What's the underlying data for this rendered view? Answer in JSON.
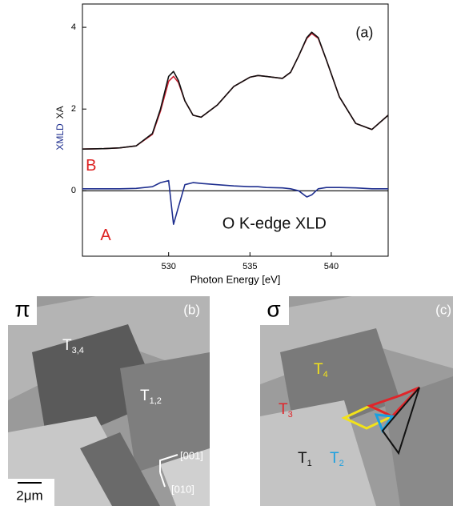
{
  "chart_data": {
    "type": "line",
    "x": [
      524.7,
      526,
      527,
      528,
      529,
      529.5,
      530,
      530.3,
      530.6,
      531,
      531.5,
      532,
      533,
      534,
      535,
      535.5,
      536,
      537,
      537.5,
      538,
      538.5,
      538.8,
      539.2,
      539.7,
      540.5,
      541.5,
      542.5,
      543.5
    ],
    "series": [
      {
        "color": "#cc2233",
        "values": [
          1.02,
          1.03,
          1.05,
          1.1,
          1.38,
          1.95,
          2.68,
          2.8,
          2.65,
          2.2,
          1.85,
          1.8,
          2.1,
          2.55,
          2.78,
          2.82,
          2.8,
          2.75,
          2.9,
          3.3,
          3.73,
          3.85,
          3.73,
          3.2,
          2.3,
          1.65,
          1.5,
          1.85
        ]
      },
      {
        "color": "#111111",
        "values": [
          1.02,
          1.03,
          1.05,
          1.1,
          1.4,
          2.0,
          2.8,
          2.92,
          2.7,
          2.2,
          1.85,
          1.8,
          2.1,
          2.55,
          2.78,
          2.82,
          2.8,
          2.75,
          2.9,
          3.3,
          3.75,
          3.88,
          3.75,
          3.2,
          2.3,
          1.65,
          1.5,
          1.85
        ]
      },
      {
        "color": "#1f2f8f",
        "values": [
          0.05,
          0.05,
          0.05,
          0.06,
          0.1,
          0.2,
          0.25,
          -0.82,
          -0.4,
          0.15,
          0.2,
          0.18,
          0.15,
          0.12,
          0.1,
          0.1,
          0.08,
          0.07,
          0.05,
          0.0,
          -0.15,
          -0.1,
          0.05,
          0.08,
          0.08,
          0.07,
          0.05,
          0.05
        ]
      }
    ],
    "xlim": [
      524.7,
      543.5
    ],
    "ylim": [
      -1.6,
      4.57
    ],
    "xticks": [
      530,
      535,
      540
    ],
    "yticks": [
      0,
      2,
      4
    ],
    "x_label": "Photon Energy [eV]",
    "y_label_parts": [
      {
        "text": "XMLD",
        "color": "#1f2f8f"
      },
      {
        "text": "XA",
        "color": "#111111"
      }
    ],
    "zero_line": true,
    "annotations": [
      {
        "text": "(a)",
        "x": 541.5,
        "y": 3.85,
        "color": "#111111",
        "size": 18
      },
      {
        "text": "B",
        "x": 524.9,
        "y": 0.6,
        "color": "#dd2222",
        "size": 20
      },
      {
        "text": "A",
        "x": 525.8,
        "y": -1.1,
        "color": "#dd2222",
        "size": 20
      },
      {
        "text": "O K-edge XLD",
        "x": 533.3,
        "y": -0.82,
        "color": "#111111",
        "size": 20
      }
    ]
  },
  "panels": [
    {
      "polarization": "π",
      "label": "(b)",
      "domains": [
        {
          "text": "T",
          "sub": "3,4",
          "color": "#ffffff"
        },
        {
          "text": "T",
          "sub": "1,2",
          "color": "#ffffff"
        }
      ],
      "directions": [
        "[001]",
        "[010]"
      ],
      "scale_bar": "2μm"
    },
    {
      "polarization": "σ",
      "label": "(c)",
      "domains": [
        {
          "text": "T",
          "sub": "4",
          "color": "#f2e21a"
        },
        {
          "text": "T",
          "sub": "3",
          "color": "#e0252a"
        },
        {
          "text": "T",
          "sub": "1",
          "color": "#111111"
        },
        {
          "text": "T",
          "sub": "2",
          "color": "#1aa0e0"
        }
      ]
    }
  ]
}
